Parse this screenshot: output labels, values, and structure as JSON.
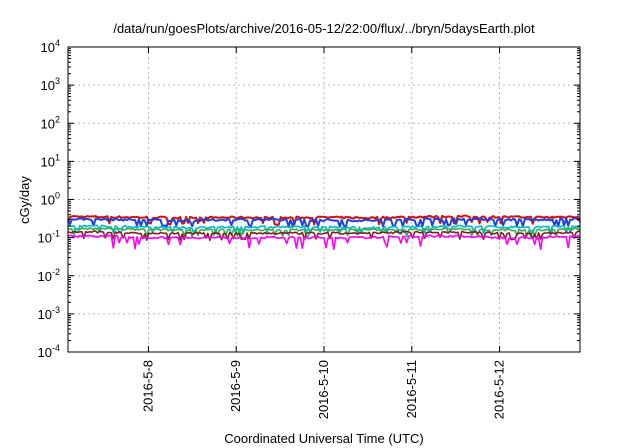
{
  "chart_data": {
    "type": "line",
    "title": "/data/run/goesPlots/archive/2016-05-12/22:00/flux/../bryn/5daysEarth.plot",
    "xlabel": "Coordinated Universal Time (UTC)",
    "ylabel": "cGy/day",
    "y_scale": "log",
    "ylim": [
      0.0001,
      10000
    ],
    "y_ticks": [
      {
        "value": 0.0001,
        "base": "10",
        "exp": "-4"
      },
      {
        "value": 0.001,
        "base": "10",
        "exp": "-3"
      },
      {
        "value": 0.01,
        "base": "10",
        "exp": "-2"
      },
      {
        "value": 0.1,
        "base": "10",
        "exp": "-1"
      },
      {
        "value": 1,
        "base": "10",
        "exp": "0"
      },
      {
        "value": 10,
        "base": "10",
        "exp": "1"
      },
      {
        "value": 100,
        "base": "10",
        "exp": "2"
      },
      {
        "value": 1000,
        "base": "10",
        "exp": "3"
      },
      {
        "value": 10000,
        "base": "10",
        "exp": "4"
      }
    ],
    "xlim": [
      "2016-05-07 02:00",
      "2016-05-12 22:00"
    ],
    "x_ticks": [
      "2016-5-8",
      "2016-5-9",
      "2016-5-10",
      "2016-5-11",
      "2016-5-12"
    ],
    "grid": true,
    "x": [
      "2016-05-07 02:00",
      "2016-05-07 12:00",
      "2016-05-08 00:00",
      "2016-05-08 12:00",
      "2016-05-09 00:00",
      "2016-05-09 12:00",
      "2016-05-10 00:00",
      "2016-05-10 12:00",
      "2016-05-11 00:00",
      "2016-05-11 12:00",
      "2016-05-12 00:00",
      "2016-05-12 12:00",
      "2016-05-12 22:00"
    ],
    "series": [
      {
        "color": "#d01010",
        "values": [
          0.36,
          0.35,
          0.34,
          0.33,
          0.34,
          0.33,
          0.34,
          0.33,
          0.35,
          0.36,
          0.35,
          0.34,
          0.36
        ]
      },
      {
        "color": "#2040e0",
        "values": [
          0.31,
          0.3,
          0.29,
          0.28,
          0.3,
          0.29,
          0.29,
          0.28,
          0.3,
          0.31,
          0.3,
          0.29,
          0.31
        ]
      },
      {
        "color": "#00b8d0",
        "values": [
          0.2,
          0.2,
          0.19,
          0.18,
          0.19,
          0.19,
          0.19,
          0.18,
          0.19,
          0.2,
          0.19,
          0.19,
          0.2
        ]
      },
      {
        "color": "#30b050",
        "values": [
          0.17,
          0.17,
          0.16,
          0.16,
          0.16,
          0.16,
          0.16,
          0.16,
          0.16,
          0.17,
          0.16,
          0.16,
          0.17
        ]
      },
      {
        "color": "#802020",
        "values": [
          0.14,
          0.14,
          0.13,
          0.13,
          0.13,
          0.13,
          0.13,
          0.13,
          0.14,
          0.14,
          0.13,
          0.13,
          0.14
        ]
      },
      {
        "color": "#ff00ff",
        "values": [
          0.11,
          0.11,
          0.1,
          0.1,
          0.1,
          0.1,
          0.1,
          0.1,
          0.11,
          0.11,
          0.1,
          0.1,
          0.11
        ]
      }
    ]
  }
}
